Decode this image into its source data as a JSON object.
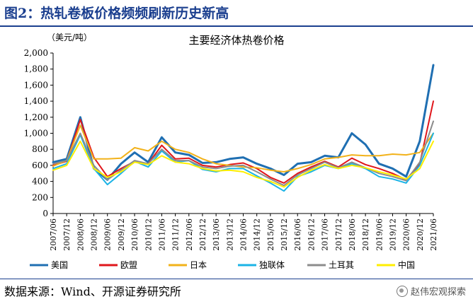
{
  "header": {
    "figure_title": "图2：热轧卷板价格频频刷新历史新高"
  },
  "footer": {
    "source": "数据来源：Wind、开源证券研究所",
    "watermark": "赵伟宏观探索"
  },
  "colors": {
    "accent": "#1b3f8f"
  },
  "chart_data": {
    "type": "line",
    "title": "主要经济体热卷价格",
    "unit": "（美元/吨）",
    "ylim": [
      0,
      2000
    ],
    "yticks": [
      "0",
      "200",
      "400",
      "600",
      "800",
      "1,000",
      "1,200",
      "1,400",
      "1,600",
      "1,800",
      "2,000"
    ],
    "x": [
      "2007/06",
      "2007/12",
      "2008/06",
      "2008/12",
      "2009/06",
      "2009/12",
      "2010/06",
      "2010/12",
      "2011/06",
      "2011/12",
      "2012/06",
      "2012/12",
      "2013/06",
      "2013/12",
      "2014/06",
      "2014/12",
      "2015/06",
      "2015/12",
      "2016/06",
      "2016/12",
      "2017/06",
      "2017/12",
      "2018/06",
      "2018/12",
      "2019/06",
      "2019/12",
      "2020/06",
      "2020/12",
      "2021/06"
    ],
    "legend_position": "bottom",
    "series": [
      {
        "name": "美国",
        "color": "#1f6fb2",
        "width": 3,
        "values": [
          640,
          680,
          1200,
          560,
          420,
          620,
          760,
          640,
          950,
          760,
          730,
          630,
          640,
          680,
          700,
          620,
          560,
          480,
          620,
          640,
          720,
          700,
          1000,
          860,
          620,
          560,
          460,
          900,
          1850
        ]
      },
      {
        "name": "欧盟",
        "color": "#e0161b",
        "width": 2,
        "values": [
          600,
          650,
          1170,
          700,
          460,
          560,
          650,
          620,
          850,
          680,
          690,
          600,
          580,
          610,
          630,
          560,
          450,
          380,
          500,
          580,
          650,
          580,
          690,
          610,
          560,
          500,
          420,
          620,
          1400
        ]
      },
      {
        "name": "日本",
        "color": "#f2b21a",
        "width": 2,
        "values": [
          590,
          660,
          1100,
          680,
          680,
          690,
          820,
          780,
          900,
          800,
          760,
          680,
          620,
          600,
          580,
          570,
          540,
          520,
          560,
          610,
          680,
          700,
          730,
          720,
          720,
          740,
          730,
          760,
          1000
        ]
      },
      {
        "name": "独联体",
        "color": "#1bb3e6",
        "width": 2,
        "values": [
          560,
          620,
          980,
          560,
          360,
          500,
          650,
          580,
          780,
          640,
          660,
          550,
          520,
          560,
          560,
          470,
          380,
          280,
          460,
          520,
          600,
          560,
          620,
          560,
          460,
          430,
          380,
          600,
          1000
        ]
      },
      {
        "name": "土耳其",
        "color": "#8c8c8c",
        "width": 2,
        "values": [
          620,
          660,
          1000,
          600,
          420,
          540,
          660,
          620,
          800,
          660,
          660,
          580,
          560,
          590,
          600,
          520,
          430,
          350,
          480,
          560,
          640,
          570,
          640,
          570,
          500,
          460,
          410,
          640,
          1150
        ]
      },
      {
        "name": "中国",
        "color": "#ffee00",
        "width": 2,
        "values": [
          540,
          600,
          900,
          560,
          450,
          520,
          640,
          610,
          720,
          640,
          620,
          560,
          530,
          540,
          520,
          450,
          400,
          330,
          450,
          540,
          610,
          560,
          600,
          570,
          520,
          480,
          430,
          560,
          900
        ]
      }
    ]
  }
}
